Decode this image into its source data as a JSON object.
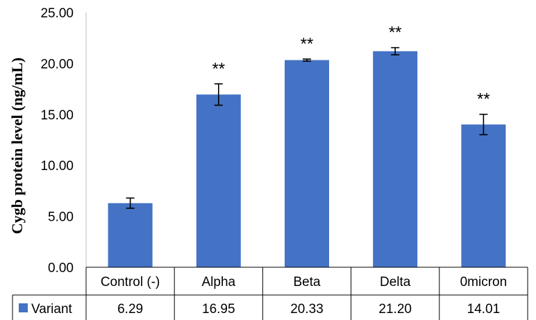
{
  "chart_data": {
    "type": "bar",
    "ylabel": "Cygb protein level (ng/mL)",
    "ylim": [
      0,
      25
    ],
    "y_ticks": [
      "0.00",
      "5.00",
      "10.00",
      "15.00",
      "20.00",
      "25.00"
    ],
    "categories": [
      "Control (-)",
      "Alpha",
      "Beta",
      "Delta",
      "0micron"
    ],
    "series": [
      {
        "name": "Variant",
        "values": [
          6.29,
          16.95,
          20.33,
          21.2,
          14.01
        ],
        "value_labels": [
          "6.29",
          "16.95",
          "20.33",
          "21.20",
          "14.01"
        ],
        "errors": [
          0.5,
          1.05,
          0.1,
          0.35,
          1.0
        ],
        "color": "#4472C4"
      }
    ],
    "annotations": [
      "",
      "**",
      "**",
      "**",
      "**"
    ],
    "grid": false,
    "legend": "data-table"
  }
}
